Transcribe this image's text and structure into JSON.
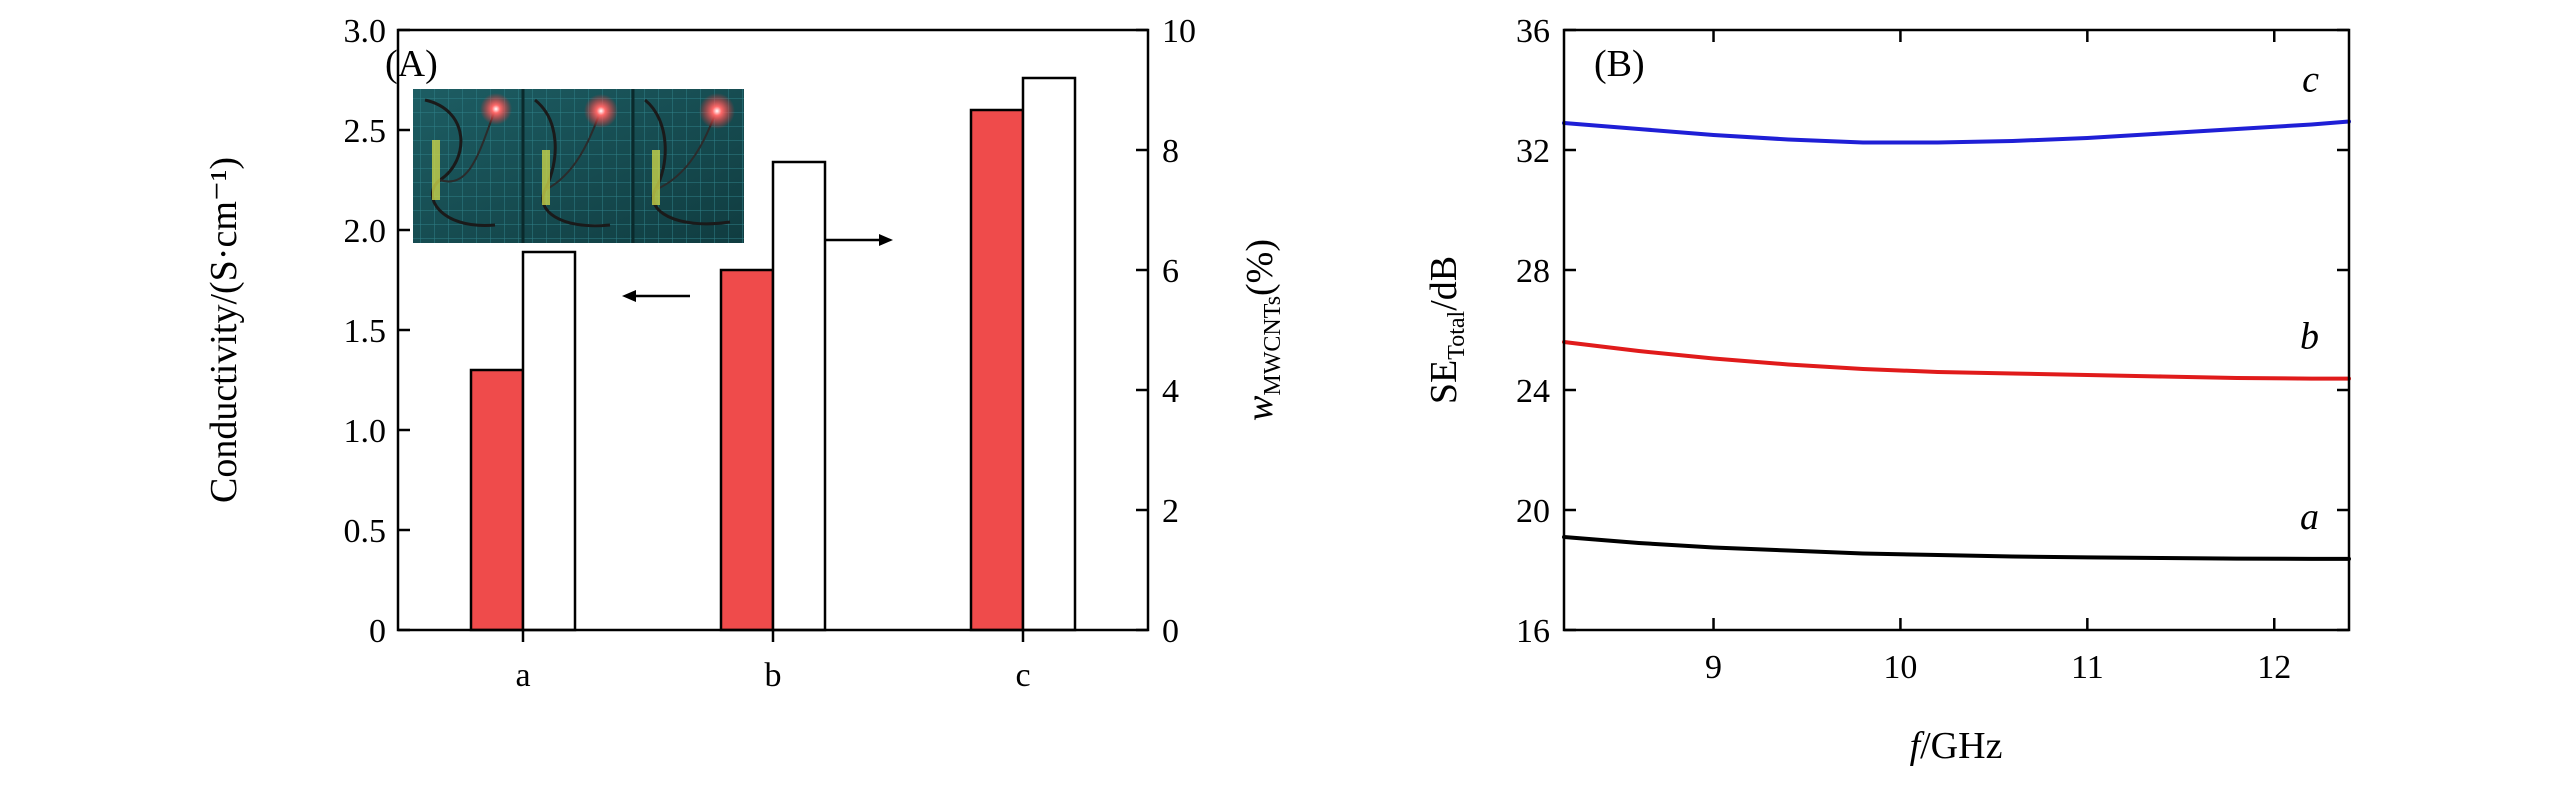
{
  "colors": {
    "conductivity_bar": "#ef4b4b",
    "mass_fraction_bar": "#ffffff",
    "curve_a": "#000000",
    "curve_b": "#e01b1b",
    "curve_c": "#1f1fd6"
  },
  "chart_data": [
    {
      "type": "bar",
      "panel_label": "(A)",
      "categories": [
        "a",
        "b",
        "c"
      ],
      "series": [
        {
          "axis": "left",
          "values": [
            1.3,
            1.8,
            2.6
          ]
        },
        {
          "axis": "right",
          "values": [
            6.3,
            7.8,
            9.2
          ]
        }
      ],
      "ylabel_left": "Conductivity/(S·cm⁻¹)",
      "ylabel_right_main": "w",
      "ylabel_right_sub": "MWCNTs",
      "ylabel_right_suffix": "(%)",
      "ylim_left": [
        0,
        3.0
      ],
      "ylim_right": [
        0,
        10
      ],
      "yticks_left": [
        "0",
        "0.5",
        "1.0",
        "1.5",
        "2.0",
        "2.5",
        "3.0"
      ],
      "yticks_left_values": [
        0,
        0.5,
        1.0,
        1.5,
        2.0,
        2.5,
        3.0
      ],
      "yticks_right": [
        "0",
        "2",
        "4",
        "6",
        "8",
        "10"
      ],
      "yticks_right_values": [
        0,
        2,
        4,
        6,
        8,
        10
      ],
      "arrows": [
        "left",
        "right"
      ],
      "inset": "photo of wire circuits with lit red LED, three panels"
    },
    {
      "type": "line",
      "panel_label": "(B)",
      "xlabel_italic": "f",
      "xlabel_rest": "/GHz",
      "ylabel_main": "SE",
      "ylabel_sub": "Total",
      "ylabel_suffix": "/dB",
      "xlim": [
        8.2,
        12.4
      ],
      "ylim": [
        16,
        36
      ],
      "xticks": [
        "9",
        "10",
        "11",
        "12"
      ],
      "xticks_values": [
        9,
        10,
        11,
        12
      ],
      "yticks": [
        "16",
        "20",
        "24",
        "28",
        "32",
        "36"
      ],
      "yticks_values": [
        16,
        20,
        24,
        28,
        32,
        36
      ],
      "series": [
        {
          "label": "a",
          "x": [
            8.2,
            8.6,
            9.0,
            9.4,
            9.8,
            10.2,
            10.6,
            11.0,
            11.4,
            11.8,
            12.2,
            12.4
          ],
          "y": [
            19.1,
            18.9,
            18.75,
            18.65,
            18.55,
            18.5,
            18.45,
            18.42,
            18.4,
            18.38,
            18.37,
            18.37
          ]
        },
        {
          "label": "b",
          "x": [
            8.2,
            8.6,
            9.0,
            9.4,
            9.8,
            10.2,
            10.6,
            11.0,
            11.4,
            11.8,
            12.2,
            12.4
          ],
          "y": [
            25.6,
            25.3,
            25.05,
            24.85,
            24.7,
            24.6,
            24.55,
            24.5,
            24.45,
            24.4,
            24.38,
            24.38
          ]
        },
        {
          "label": "c",
          "x": [
            8.2,
            8.6,
            9.0,
            9.4,
            9.8,
            10.2,
            10.6,
            11.0,
            11.4,
            11.8,
            12.2,
            12.4
          ],
          "y": [
            32.9,
            32.7,
            32.5,
            32.35,
            32.25,
            32.25,
            32.3,
            32.4,
            32.55,
            32.7,
            32.85,
            32.95
          ]
        }
      ]
    }
  ]
}
